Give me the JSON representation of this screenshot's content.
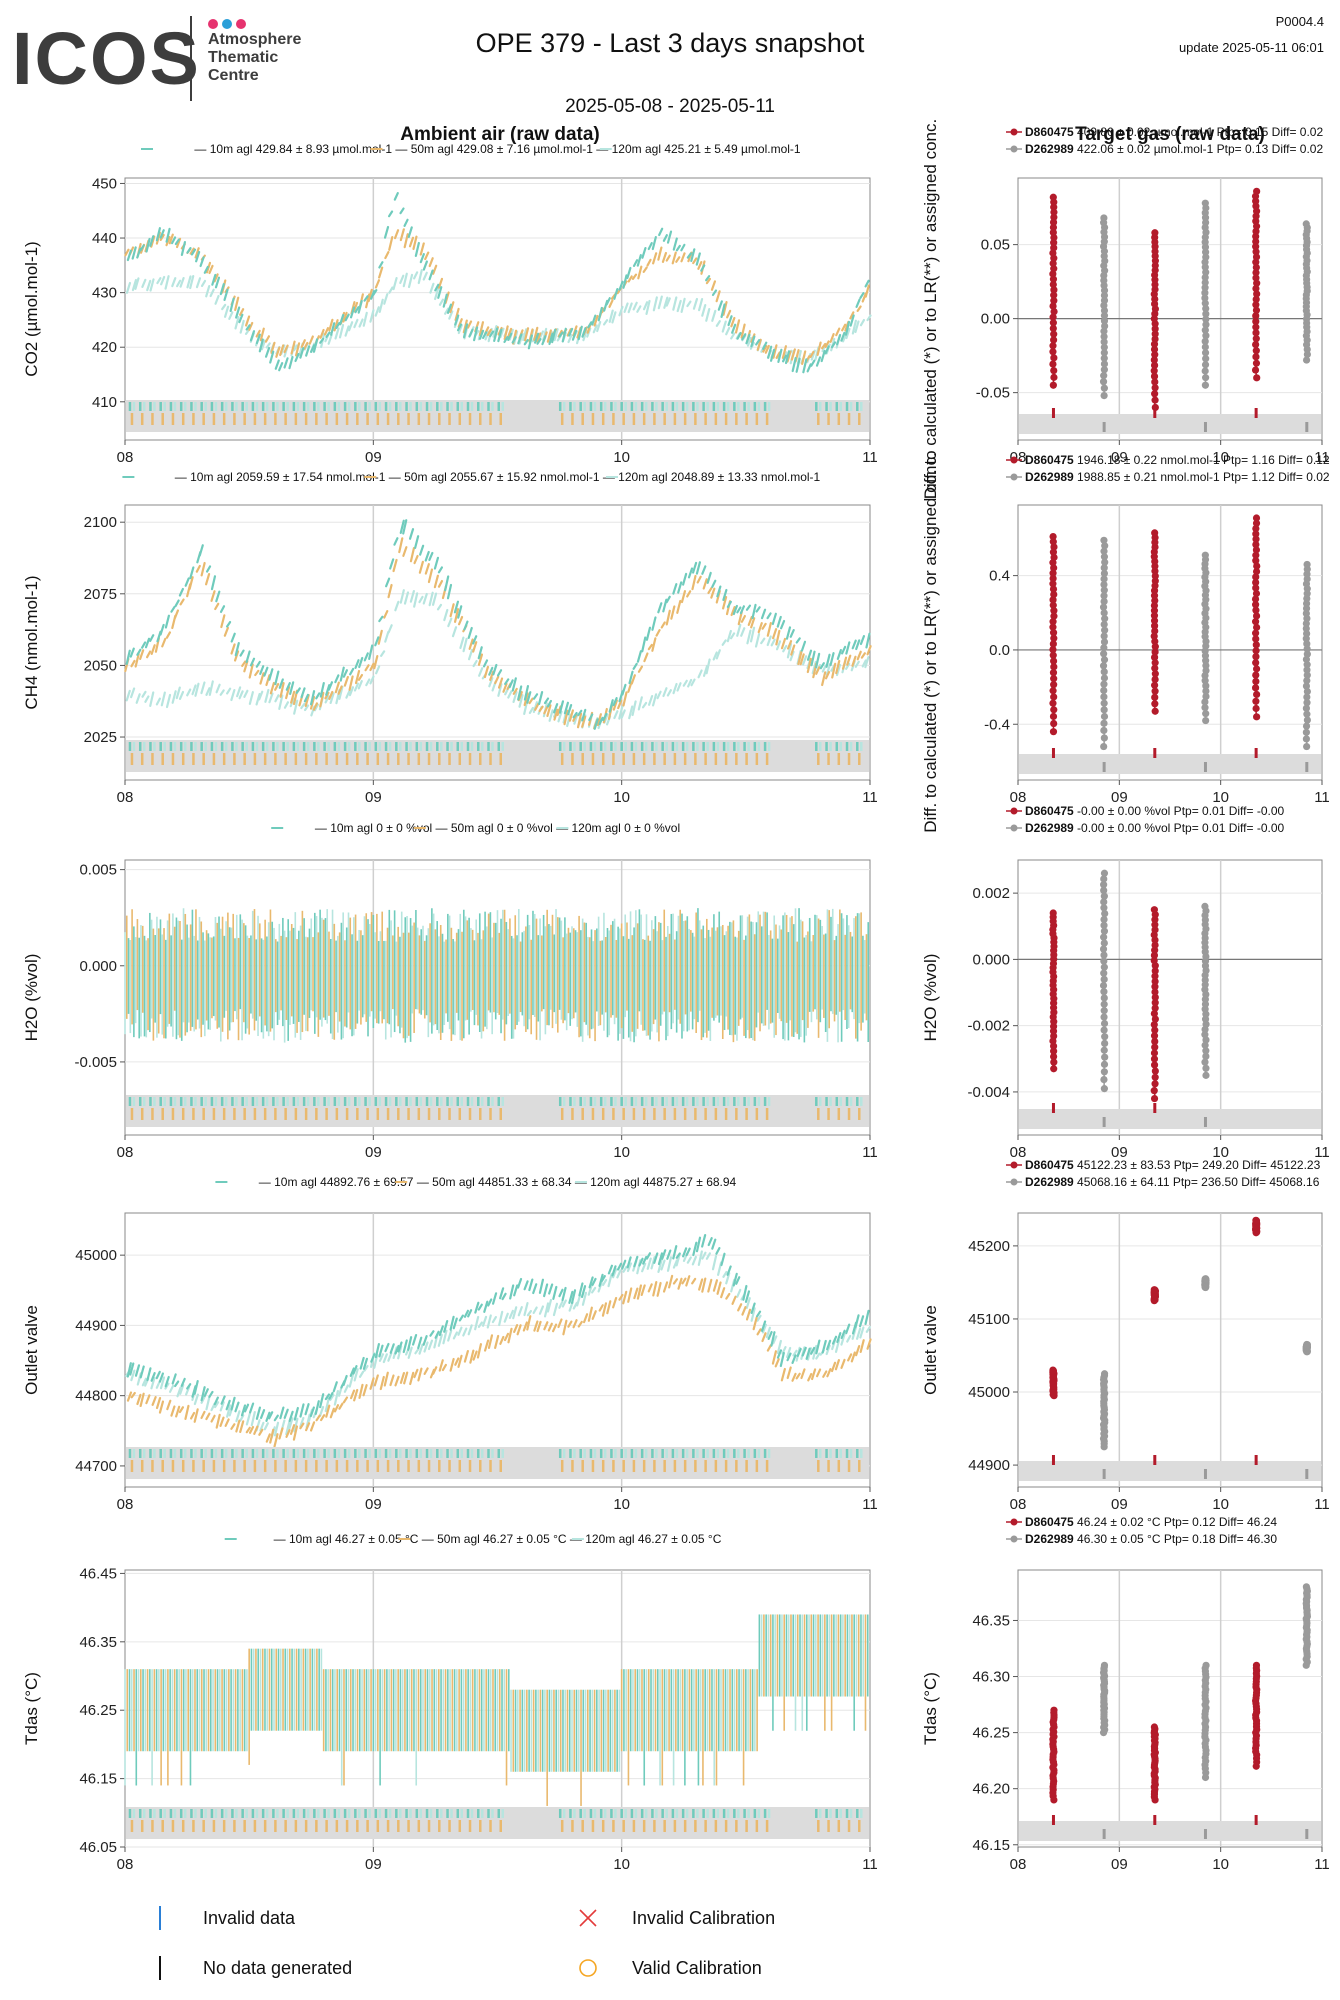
{
  "header": {
    "logo": "ICOS",
    "logo_subtitle": [
      "Atmosphere",
      "Thematic",
      "Centre"
    ],
    "title": "OPE 379 - Last 3 days snapshot",
    "date_range": "2025-05-08 - 2025-05-11",
    "code": "P0004.4",
    "update": "update  2025-05-11 06:01",
    "ambient_title": "Ambient air (raw data)",
    "target_title": "Target gas (raw data)"
  },
  "colors": {
    "h10": "#6fcbbc",
    "h50": "#e9b96e",
    "h120": "#b7e5df",
    "tgt1": "#b31b2b",
    "tgt2": "#9a9a9a",
    "logo_dot1": "#e6336f",
    "logo_dot2": "#2a9fd8",
    "logo_dot3": "#e6336f",
    "invalid_data": "#2a7fd6",
    "invalid_cal": "#e33b3b",
    "valid_cal": "#f5a623"
  },
  "legend": {
    "invalid_data": "Invalid data",
    "no_data": "No data generated",
    "invalid_calibration": "Invalid Calibration",
    "valid_calibration": "Valid Calibration"
  },
  "chart_data": [
    {
      "type": "line",
      "id": "co2-ambient",
      "ylabel": "CO2 (µmol.mol-1)",
      "ylim": [
        403,
        451
      ],
      "yticks": [
        410,
        420,
        430,
        440,
        450
      ],
      "xlim": [
        8,
        11
      ],
      "xticks": [
        "08",
        "09",
        "10",
        "11"
      ],
      "legend": [
        "10m agl 429.84 ± 8.93 µmol.mol-1",
        "50m agl 429.08 ± 7.16 µmol.mol-1",
        "120m agl 425.21 ± 5.49 µmol.mol-1"
      ],
      "series": [
        {
          "name": "10m",
          "x": [
            8.0,
            8.15,
            8.3,
            8.5,
            8.62,
            8.75,
            9.0,
            9.08,
            9.2,
            9.35,
            9.6,
            9.85,
            10.0,
            10.15,
            10.3,
            10.45,
            10.6,
            10.75,
            10.9,
            11.0
          ],
          "values": [
            436,
            441,
            436,
            423,
            416,
            420,
            430,
            448,
            435,
            423,
            421,
            423,
            432,
            441,
            436,
            423,
            419,
            416,
            423,
            433
          ]
        },
        {
          "name": "50m",
          "x": [
            8.0,
            8.15,
            8.3,
            8.5,
            8.62,
            8.75,
            9.0,
            9.08,
            9.2,
            9.35,
            9.6,
            9.85,
            10.0,
            10.15,
            10.3,
            10.45,
            10.6,
            10.75,
            10.9,
            11.0
          ],
          "values": [
            437,
            440,
            437,
            424,
            419,
            421,
            430,
            441,
            438,
            424,
            422,
            423,
            431,
            437,
            436,
            424,
            419,
            418,
            424,
            431
          ]
        },
        {
          "name": "120m",
          "x": [
            8.0,
            8.15,
            8.3,
            8.5,
            8.62,
            8.75,
            9.0,
            9.08,
            9.2,
            9.35,
            9.6,
            9.85,
            10.0,
            10.15,
            10.3,
            10.45,
            10.6,
            10.75,
            10.9,
            11.0
          ],
          "values": [
            431,
            432,
            432,
            422,
            419,
            420,
            426,
            432,
            433,
            423,
            422,
            422,
            427,
            428,
            428,
            422,
            419,
            418,
            422,
            426
          ]
        }
      ]
    },
    {
      "type": "line",
      "id": "ch4-ambient",
      "ylabel": "CH4 (nmol.mol-1)",
      "ylim": [
        2010,
        2106
      ],
      "yticks": [
        2025,
        2050,
        2075,
        2100
      ],
      "xlim": [
        8,
        11
      ],
      "xticks": [
        "08",
        "09",
        "10",
        "11"
      ],
      "legend": [
        "10m agl 2059.59 ± 17.54 nmol.mol-1",
        "50m agl 2055.67 ± 15.92 nmol.mol-1",
        "120m agl 2048.89 ± 13.33 nmol.mol-1"
      ],
      "series": [
        {
          "name": "10m",
          "x": [
            8.0,
            8.15,
            8.3,
            8.45,
            8.6,
            8.75,
            9.0,
            9.1,
            9.25,
            9.45,
            9.6,
            9.75,
            9.9,
            10.0,
            10.15,
            10.3,
            10.45,
            10.6,
            10.8,
            11.0
          ],
          "values": [
            2052,
            2062,
            2090,
            2055,
            2045,
            2038,
            2055,
            2100,
            2085,
            2050,
            2040,
            2035,
            2030,
            2040,
            2070,
            2085,
            2070,
            2068,
            2050,
            2060
          ]
        },
        {
          "name": "50m",
          "x": [
            8.0,
            8.15,
            8.3,
            8.45,
            8.6,
            8.75,
            9.0,
            9.1,
            9.25,
            9.45,
            9.6,
            9.75,
            9.9,
            10.0,
            10.15,
            10.3,
            10.45,
            10.6,
            10.8,
            11.0
          ],
          "values": [
            2050,
            2058,
            2085,
            2052,
            2042,
            2036,
            2050,
            2092,
            2080,
            2048,
            2038,
            2033,
            2030,
            2038,
            2062,
            2080,
            2068,
            2062,
            2046,
            2055
          ]
        },
        {
          "name": "120m",
          "x": [
            8.0,
            8.15,
            8.3,
            8.45,
            8.6,
            8.75,
            9.0,
            9.1,
            9.25,
            9.45,
            9.6,
            9.75,
            9.9,
            10.0,
            10.15,
            10.3,
            10.45,
            10.6,
            10.8,
            11.0
          ],
          "values": [
            2040,
            2038,
            2042,
            2040,
            2038,
            2035,
            2045,
            2075,
            2072,
            2045,
            2036,
            2032,
            2030,
            2033,
            2040,
            2045,
            2062,
            2058,
            2048,
            2052
          ]
        }
      ]
    },
    {
      "type": "line",
      "id": "h2o-ambient",
      "ylabel": "H2O (%vol)",
      "ylim": [
        -0.0088,
        0.0055
      ],
      "yticks": [
        -0.005,
        0.0,
        0.005
      ],
      "yticklabels": [
        "-0.005",
        "0.000",
        "0.005"
      ],
      "xlim": [
        8,
        11
      ],
      "xticks": [
        "08",
        "09",
        "10",
        "11"
      ],
      "legend": [
        "10m agl 0 ± 0 %vol",
        "50m agl 0 ± 0 %vol",
        "120m agl 0 ± 0 %vol"
      ],
      "noise_band": [
        -0.004,
        0.003
      ]
    },
    {
      "type": "line",
      "id": "outlet-ambient",
      "ylabel": "Outlet valve",
      "ylim": [
        44670,
        45060
      ],
      "yticks": [
        44700,
        44800,
        44900,
        45000
      ],
      "xlim": [
        8,
        11
      ],
      "xticks": [
        "08",
        "09",
        "10",
        "11"
      ],
      "legend": [
        "10m agl 44892.76 ± 69.57",
        "50m agl 44851.33 ± 68.34",
        "120m agl 44875.27 ± 68.94"
      ],
      "series": [
        {
          "name": "10m",
          "x": [
            8.0,
            8.2,
            8.4,
            8.6,
            8.75,
            9.0,
            9.2,
            9.4,
            9.6,
            9.8,
            10.0,
            10.2,
            10.35,
            10.5,
            10.65,
            10.8,
            10.9,
            11.0
          ],
          "values": [
            44840,
            44820,
            44790,
            44770,
            44780,
            44860,
            44880,
            44920,
            44960,
            44940,
            44990,
            45000,
            45020,
            44940,
            44850,
            44870,
            44890,
            44920
          ]
        },
        {
          "name": "50m",
          "x": [
            8.0,
            8.2,
            8.4,
            8.6,
            8.75,
            9.0,
            9.2,
            9.4,
            9.6,
            9.8,
            10.0,
            10.2,
            10.35,
            10.5,
            10.65,
            10.8,
            10.9,
            11.0
          ],
          "values": [
            44800,
            44780,
            44760,
            44740,
            44760,
            44820,
            44830,
            44860,
            44900,
            44900,
            44940,
            44960,
            44960,
            44920,
            44830,
            44830,
            44850,
            44880
          ]
        },
        {
          "name": "120m",
          "x": [
            8.0,
            8.2,
            8.4,
            8.6,
            8.75,
            9.0,
            9.2,
            9.4,
            9.6,
            9.8,
            10.0,
            10.2,
            10.35,
            10.5,
            10.65,
            10.8,
            10.9,
            11.0
          ],
          "values": [
            44830,
            44810,
            44780,
            44750,
            44770,
            44850,
            44870,
            44900,
            44920,
            44930,
            44980,
            44990,
            45000,
            44930,
            44860,
            44860,
            44880,
            44900
          ]
        }
      ]
    },
    {
      "type": "line",
      "id": "tdas-ambient",
      "ylabel": "Tdas (°C)",
      "ylim": [
        46.05,
        46.455
      ],
      "yticks": [
        46.05,
        46.15,
        46.25,
        46.35,
        46.45
      ],
      "yticklabels": [
        "46.05",
        "46.15",
        "46.25",
        "46.35",
        "46.45"
      ],
      "xlim": [
        8,
        11
      ],
      "xticks": [
        "08",
        "09",
        "10",
        "11"
      ],
      "legend": [
        "10m agl 46.27 ± 0.05 °C",
        "50m agl 46.27 ± 0.05 °C",
        "120m agl 46.27 ± 0.05 °C"
      ],
      "steps": [
        [
          8.0,
          8.5,
          46.25
        ],
        [
          8.5,
          8.6,
          46.28
        ],
        [
          8.6,
          8.8,
          46.28
        ],
        [
          8.8,
          9.55,
          46.25
        ],
        [
          9.55,
          10.0,
          46.22
        ],
        [
          10.0,
          10.55,
          46.25
        ],
        [
          10.55,
          11.0,
          46.33
        ]
      ]
    },
    {
      "type": "scatter",
      "id": "co2-target",
      "ylabel": "Diff. to calculated (*) or to LR(**) or assigned conc.",
      "ylim": [
        -0.082,
        0.095
      ],
      "yticks": [
        -0.05,
        0.0,
        0.05
      ],
      "yticklabels": [
        "-0.05",
        "0.00",
        "0.05"
      ],
      "xlim": [
        8,
        11
      ],
      "xticks": [
        "08",
        "09",
        "10",
        "11"
      ],
      "legend": [
        {
          "name": "D860475",
          "text": "409.80 ± 0.02 µmol.mol-1 Ptp= 0.15 Diff= 0.02"
        },
        {
          "name": "D262989",
          "text": "422.06 ± 0.02 µmol.mol-1 Ptp= 0.13 Diff= 0.02"
        }
      ],
      "columns": [
        {
          "x": 8.35,
          "s": 0,
          "min": -0.045,
          "max": 0.082
        },
        {
          "x": 8.85,
          "s": 1,
          "min": -0.052,
          "max": 0.068
        },
        {
          "x": 9.35,
          "s": 0,
          "min": -0.06,
          "max": 0.058
        },
        {
          "x": 9.85,
          "s": 1,
          "min": -0.045,
          "max": 0.078
        },
        {
          "x": 10.35,
          "s": 0,
          "min": -0.04,
          "max": 0.086
        },
        {
          "x": 10.85,
          "s": 1,
          "min": -0.028,
          "max": 0.064
        }
      ]
    },
    {
      "type": "scatter",
      "id": "ch4-target",
      "ylabel": "Diff. to calculated (*) or to LR(**) or assigned conc.",
      "ylim": [
        -0.7,
        0.78
      ],
      "yticks": [
        -0.4,
        0.0,
        0.4
      ],
      "yticklabels": [
        "-0.4",
        "0.0",
        "0.4"
      ],
      "xlim": [
        8,
        11
      ],
      "xticks": [
        "08",
        "09",
        "10",
        "11"
      ],
      "legend": [
        {
          "name": "D860475",
          "text": "1946.18 ± 0.22 nmol.mol-1 Ptp= 1.16 Diff= 0.12"
        },
        {
          "name": "D262989",
          "text": "1988.85 ± 0.21 nmol.mol-1 Ptp= 1.12 Diff= 0.02"
        }
      ],
      "columns": [
        {
          "x": 8.35,
          "s": 0,
          "min": -0.44,
          "max": 0.61
        },
        {
          "x": 8.85,
          "s": 1,
          "min": -0.52,
          "max": 0.59
        },
        {
          "x": 9.35,
          "s": 0,
          "min": -0.33,
          "max": 0.63
        },
        {
          "x": 9.85,
          "s": 1,
          "min": -0.38,
          "max": 0.51
        },
        {
          "x": 10.35,
          "s": 0,
          "min": -0.36,
          "max": 0.71
        },
        {
          "x": 10.85,
          "s": 1,
          "min": -0.52,
          "max": 0.46
        }
      ]
    },
    {
      "type": "scatter",
      "id": "h2o-target",
      "ylabel": "H2O (%vol)",
      "ylim": [
        -0.0053,
        0.003
      ],
      "yticks": [
        -0.004,
        -0.002,
        0.0,
        0.002
      ],
      "yticklabels": [
        "-0.004",
        "-0.002",
        "0.000",
        "0.002"
      ],
      "xlim": [
        8,
        11
      ],
      "xticks": [
        "08",
        "09",
        "10",
        "11"
      ],
      "legend": [
        {
          "name": "D860475",
          "text": "-0.00 ± 0.00 %vol Ptp= 0.01 Diff= -0.00"
        },
        {
          "name": "D262989",
          "text": "-0.00 ± 0.00 %vol Ptp= 0.01 Diff= -0.00"
        }
      ],
      "columns": [
        {
          "x": 8.35,
          "s": 0,
          "min": -0.0033,
          "max": 0.0014
        },
        {
          "x": 8.85,
          "s": 1,
          "min": -0.0039,
          "max": 0.0026
        },
        {
          "x": 9.35,
          "s": 0,
          "min": -0.0042,
          "max": 0.0015
        },
        {
          "x": 9.85,
          "s": 1,
          "min": -0.0035,
          "max": 0.0016
        }
      ]
    },
    {
      "type": "scatter",
      "id": "outlet-target",
      "ylabel": "Outlet valve",
      "ylim": [
        44870,
        45245
      ],
      "yticks": [
        44900,
        45000,
        45100,
        45200
      ],
      "xlim": [
        8,
        11
      ],
      "xticks": [
        "08",
        "09",
        "10",
        "11"
      ],
      "legend": [
        {
          "name": "D860475",
          "text": "45122.23 ± 83.53  Ptp= 249.20 Diff= 45122.23"
        },
        {
          "name": "D262989",
          "text": "45068.16 ± 64.11  Ptp= 236.50 Diff= 45068.16"
        }
      ],
      "columns": [
        {
          "x": 8.35,
          "s": 0,
          "min": 44995,
          "max": 45030
        },
        {
          "x": 8.85,
          "s": 1,
          "min": 44925,
          "max": 45025
        },
        {
          "x": 9.35,
          "s": 0,
          "min": 45125,
          "max": 45140
        },
        {
          "x": 9.85,
          "s": 1,
          "min": 45143,
          "max": 45155
        },
        {
          "x": 10.35,
          "s": 0,
          "min": 45218,
          "max": 45235
        },
        {
          "x": 10.85,
          "s": 1,
          "min": 45055,
          "max": 45065
        }
      ]
    },
    {
      "type": "scatter",
      "id": "tdas-target",
      "ylabel": "Tdas (°C)",
      "ylim": [
        46.148,
        46.395
      ],
      "yticks": [
        46.15,
        46.2,
        46.25,
        46.3,
        46.35
      ],
      "yticklabels": [
        "46.15",
        "46.20",
        "46.25",
        "46.30",
        "46.35"
      ],
      "xlim": [
        8,
        11
      ],
      "xticks": [
        "08",
        "09",
        "10",
        "11"
      ],
      "legend": [
        {
          "name": "D860475",
          "text": "46.24 ± 0.02 °C Ptp= 0.12 Diff= 46.24"
        },
        {
          "name": "D262989",
          "text": "46.30 ± 0.05 °C Ptp= 0.18 Diff= 46.30"
        }
      ],
      "columns": [
        {
          "x": 8.35,
          "s": 0,
          "min": 46.19,
          "max": 46.27
        },
        {
          "x": 8.85,
          "s": 1,
          "min": 46.25,
          "max": 46.31
        },
        {
          "x": 9.35,
          "s": 0,
          "min": 46.19,
          "max": 46.255
        },
        {
          "x": 9.85,
          "s": 1,
          "min": 46.21,
          "max": 46.31
        },
        {
          "x": 10.35,
          "s": 0,
          "min": 46.22,
          "max": 46.31
        },
        {
          "x": 10.85,
          "s": 1,
          "min": 46.31,
          "max": 46.38
        }
      ]
    }
  ]
}
